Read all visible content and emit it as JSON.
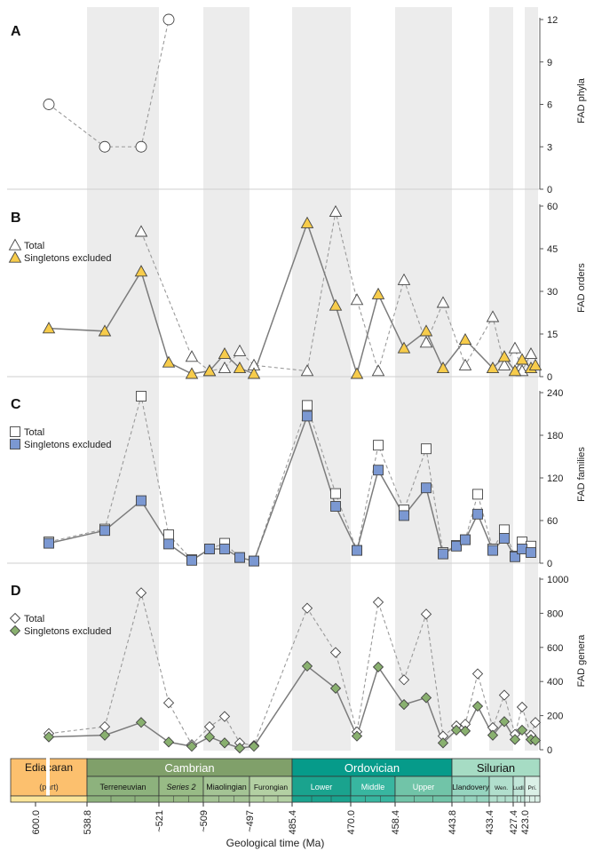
{
  "chart_data": [
    {
      "panel": "A",
      "type": "line",
      "ylabel": "FAD phyla",
      "ylim": [
        0,
        12
      ],
      "yticks": [
        "0",
        "3",
        "6",
        "9",
        "12"
      ],
      "series": [
        {
          "name": "",
          "marker": "circle",
          "x": [
            1,
            2,
            3,
            4
          ],
          "values": [
            6,
            3,
            3,
            12
          ]
        }
      ]
    },
    {
      "panel": "B",
      "type": "line",
      "ylabel": "FAD orders",
      "ylim": [
        0,
        60
      ],
      "yticks": [
        "0",
        "15",
        "30",
        "45",
        "60"
      ],
      "legend": [
        "Total",
        "Singletons excluded"
      ],
      "series": [
        {
          "name": "Total",
          "marker": "triangle",
          "x": [
            3,
            5,
            6,
            7,
            8,
            9,
            10,
            11,
            12,
            13,
            14,
            15,
            16,
            18,
            20,
            21,
            22,
            23,
            24
          ],
          "values": [
            51,
            7,
            2,
            3,
            9,
            4,
            2,
            58,
            27,
            2,
            34,
            12,
            26,
            4,
            21,
            4,
            10,
            2,
            8
          ]
        },
        {
          "name": "Singletons excluded",
          "marker": "triangle",
          "x": [
            1,
            2,
            3,
            4,
            5,
            6,
            7,
            8,
            9,
            10,
            11,
            12,
            13,
            14,
            15,
            16,
            18,
            20,
            21,
            22,
            23,
            24,
            25
          ],
          "values": [
            17,
            16,
            37,
            5,
            1,
            2,
            8,
            3,
            1,
            54,
            25,
            1,
            29,
            10,
            16,
            3,
            13,
            3,
            7,
            2,
            6,
            3,
            4
          ]
        }
      ]
    },
    {
      "panel": "C",
      "type": "line",
      "ylabel": "FAD families",
      "ylim": [
        0,
        240
      ],
      "yticks": [
        "0",
        "60",
        "120",
        "180",
        "240"
      ],
      "legend": [
        "Total",
        "Singletons excluded"
      ],
      "series": [
        {
          "name": "Total",
          "marker": "square",
          "x": [
            1,
            2,
            3,
            4,
            5,
            6,
            7,
            8,
            9,
            10,
            11,
            12,
            13,
            14,
            15,
            16,
            17,
            18,
            19,
            20,
            21,
            22,
            23,
            24
          ],
          "values": [
            30,
            48,
            235,
            40,
            5,
            20,
            28,
            8,
            3,
            222,
            98,
            18,
            166,
            75,
            161,
            15,
            25,
            33,
            97,
            20,
            47,
            10,
            30,
            24
          ]
        },
        {
          "name": "Singletons excluded",
          "marker": "square",
          "x": [
            1,
            2,
            3,
            4,
            5,
            6,
            7,
            8,
            9,
            10,
            11,
            12,
            13,
            14,
            15,
            16,
            17,
            18,
            19,
            20,
            21,
            22,
            23,
            24
          ],
          "values": [
            28,
            46,
            88,
            27,
            4,
            20,
            20,
            8,
            3,
            207,
            80,
            18,
            131,
            67,
            106,
            13,
            24,
            33,
            69,
            18,
            35,
            9,
            20,
            15
          ]
        }
      ]
    },
    {
      "panel": "D",
      "type": "line",
      "ylabel": "FAD genera",
      "ylim": [
        0,
        1000
      ],
      "yticks": [
        "0",
        "200",
        "400",
        "600",
        "800",
        "1000"
      ],
      "legend": [
        "Total",
        "Singletons excluded"
      ],
      "series": [
        {
          "name": "Total",
          "marker": "diamond",
          "x": [
            1,
            2,
            3,
            4,
            5,
            6,
            7,
            8,
            9,
            10,
            11,
            12,
            13,
            14,
            15,
            16,
            17,
            18,
            19,
            20,
            21,
            22,
            23,
            24,
            25
          ],
          "values": [
            95,
            135,
            920,
            275,
            30,
            135,
            195,
            40,
            25,
            830,
            570,
            105,
            865,
            410,
            795,
            80,
            140,
            150,
            445,
            130,
            320,
            90,
            250,
            85,
            160
          ]
        },
        {
          "name": "Singletons excluded",
          "marker": "diamond",
          "x": [
            1,
            2,
            3,
            4,
            5,
            6,
            7,
            8,
            9,
            10,
            11,
            12,
            13,
            14,
            15,
            16,
            17,
            18,
            19,
            20,
            21,
            22,
            23,
            24,
            25
          ],
          "values": [
            75,
            85,
            160,
            45,
            20,
            75,
            40,
            10,
            20,
            490,
            360,
            80,
            485,
            265,
            305,
            40,
            115,
            110,
            255,
            85,
            165,
            60,
            115,
            60,
            55
          ]
        }
      ]
    }
  ],
  "timescale": {
    "periods": [
      {
        "name": "Ediacaran",
        "sub": "(part)",
        "color": "#fcc06e"
      },
      {
        "name": "Cambrian",
        "color": "#80a06a"
      },
      {
        "name": "Ordovician",
        "color": "#069b8a"
      },
      {
        "name": "Silurian",
        "color": "#a6dcc4"
      }
    ],
    "epochs": [
      {
        "name": "Terreneuvian",
        "color": "#8db27d"
      },
      {
        "name": "Series 2",
        "color": "#98bb86",
        "italic": true
      },
      {
        "name": "Miaolingian",
        "color": "#a4c495"
      },
      {
        "name": "Furongian",
        "color": "#b3d0a3"
      },
      {
        "name": "Lower",
        "color": "#1aa38e"
      },
      {
        "name": "Middle",
        "color": "#38b6a0"
      },
      {
        "name": "Upper",
        "color": "#71c4a8"
      },
      {
        "name": "Llandovery",
        "color": "#96d4bf"
      },
      {
        "name": "Wen.",
        "color": "#b1dfcd"
      },
      {
        "name": "Ludl.",
        "color": "#c1e6d8"
      },
      {
        "name": "Prí.",
        "color": "#dbf0e7"
      }
    ],
    "boundaries": [
      "600.0",
      "538.8",
      "~521",
      "~509",
      "~497",
      "485.4",
      "470.0",
      "458.4",
      "443.8",
      "433.4",
      "427.4",
      "423.0"
    ],
    "xlabel": "Geological time (Ma)"
  },
  "colors": {
    "band": "#ececec",
    "triangle_fill": "#f7cc4b",
    "square_fill": "#7b98d2",
    "diamond_fill": "#89b06f",
    "line_total": "#9a9a9a",
    "line_single": "#7c7c7c"
  }
}
